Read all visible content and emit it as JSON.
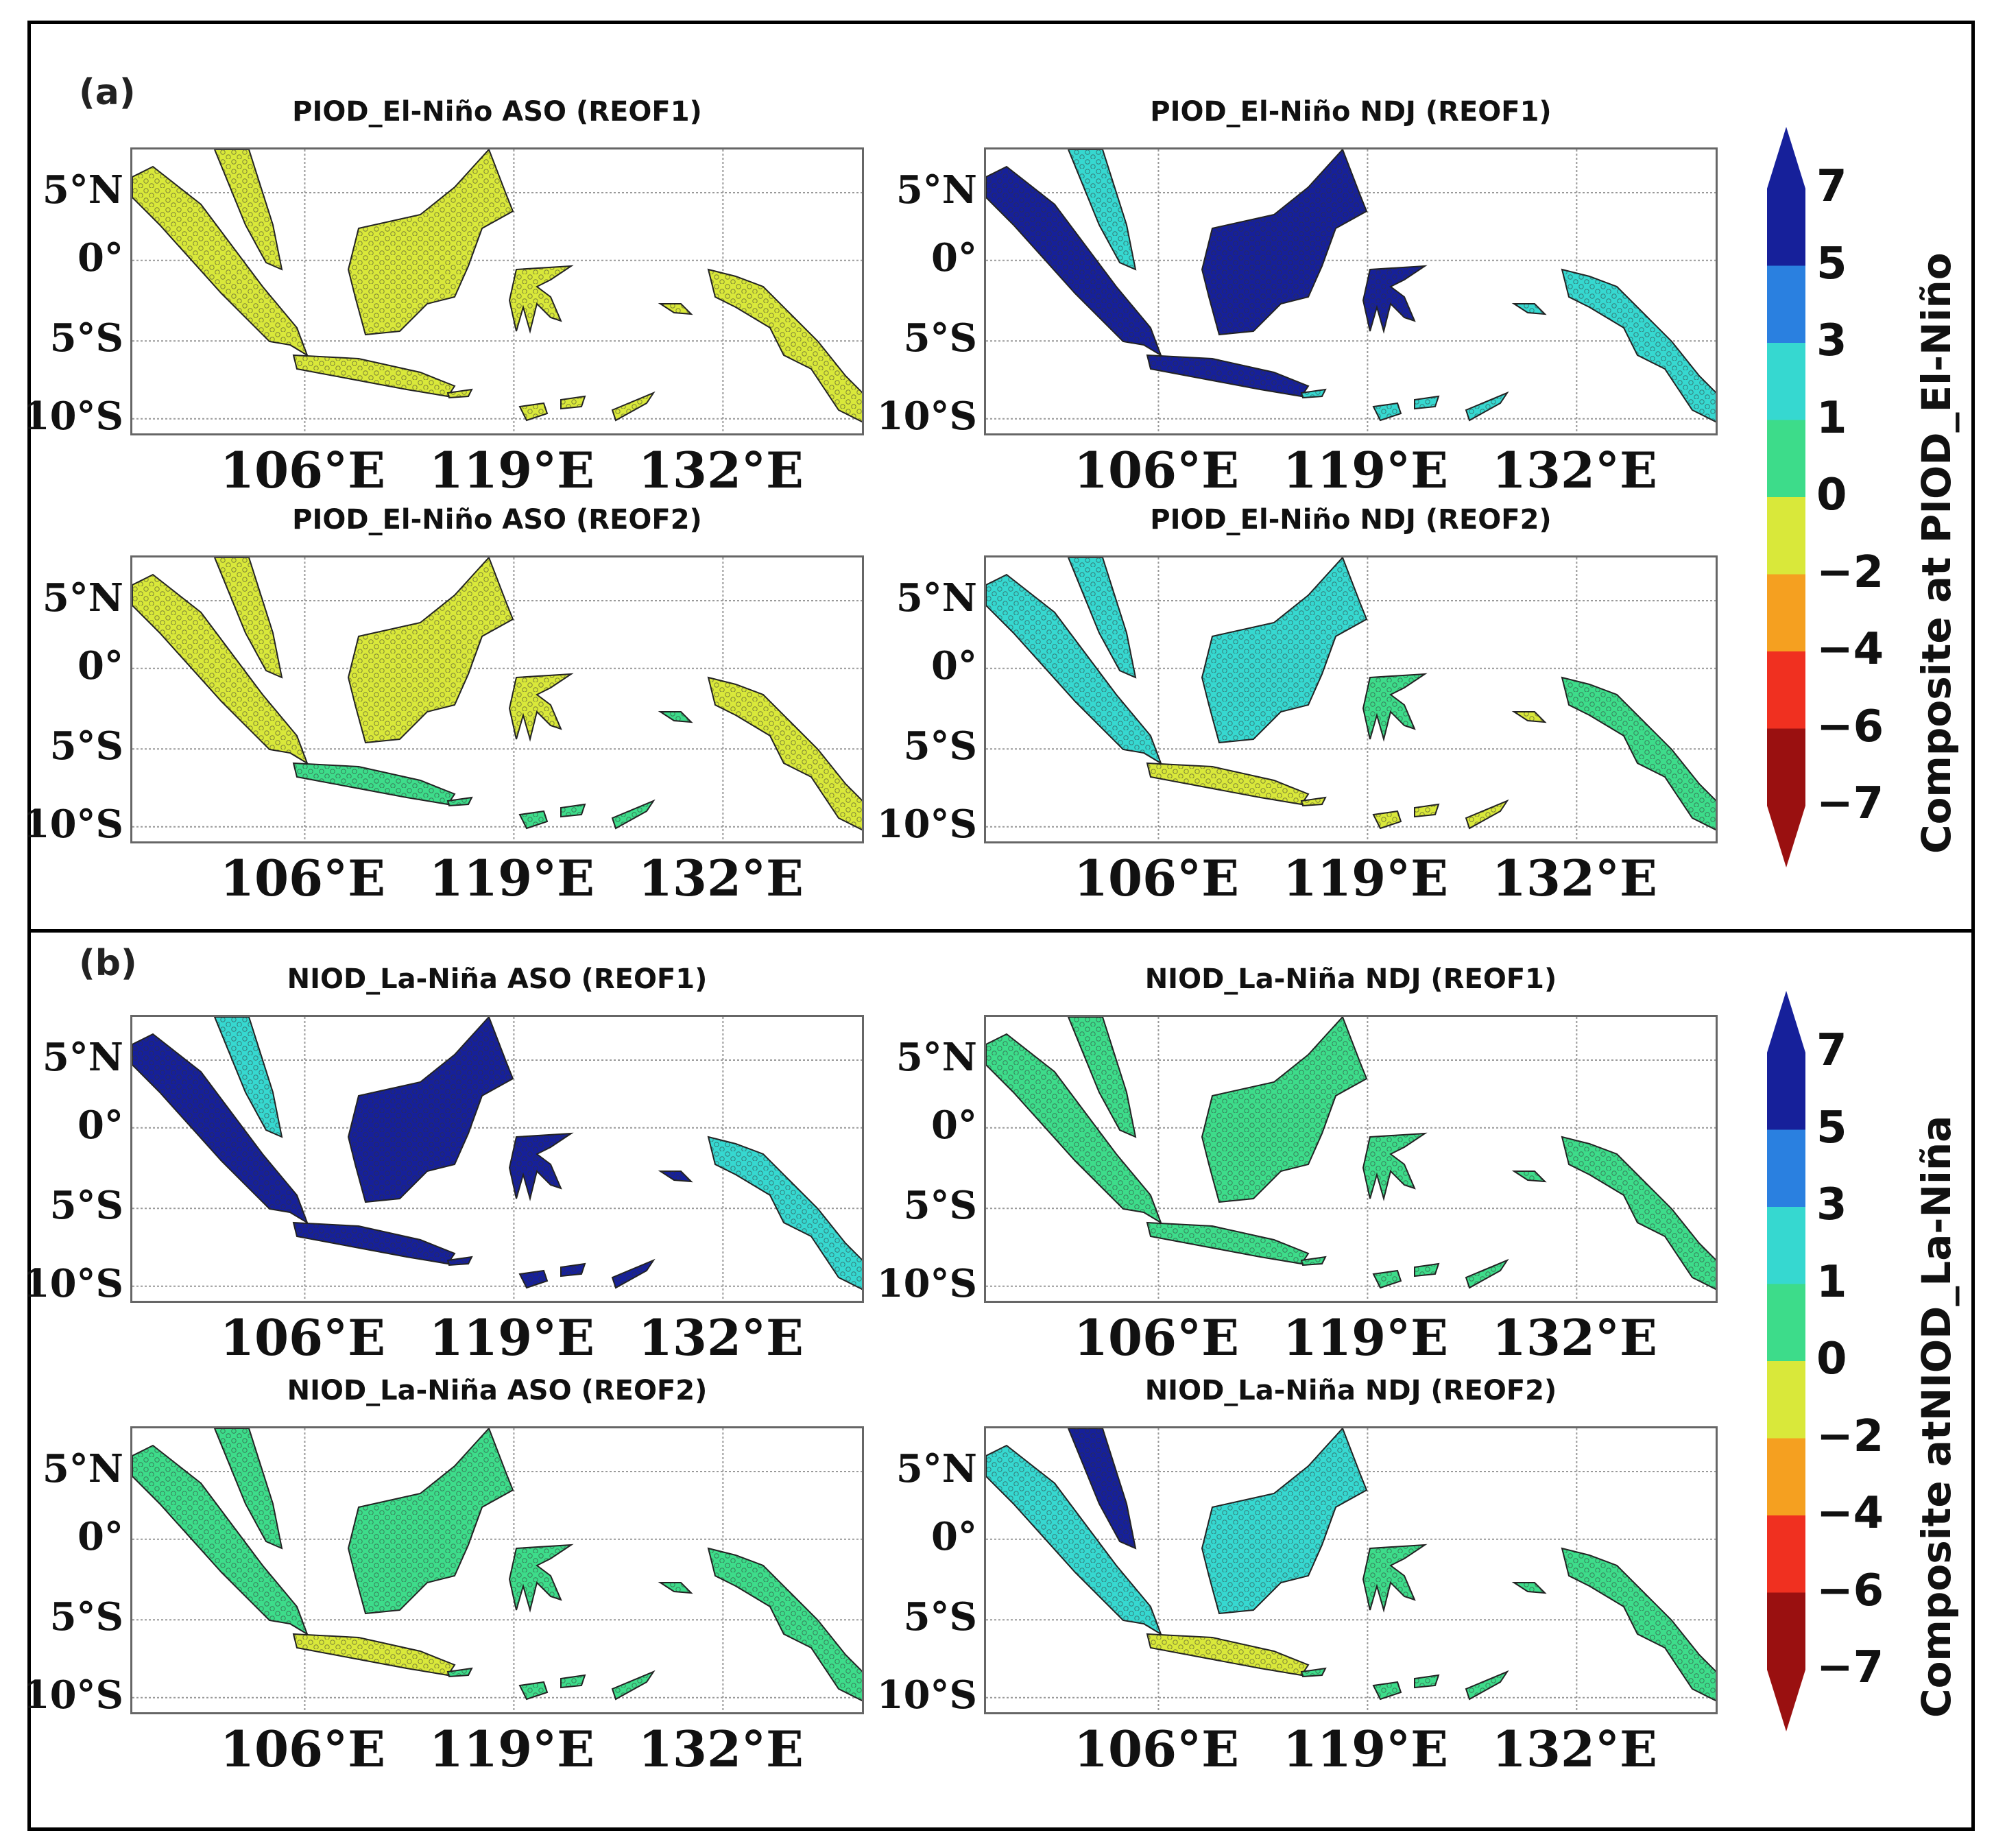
{
  "sections": [
    {
      "label": "(a)",
      "colorbar_title": "Composite at PIOD_El-Niño",
      "panels": [
        {
          "title": "PIOD_El-Niño ASO (REOF1)",
          "fills": {
            "sumatra": "#d9e83a",
            "malaya": "#d9e83a",
            "borneo": "#d9e83a",
            "java": "#d9e83a",
            "sulawesi": "#d9e83a",
            "papua": "#d9e83a",
            "islands": "#d9e83a"
          }
        },
        {
          "title": "PIOD_El-Niño NDJ (REOF1)",
          "fills": {
            "sumatra": "#16209a",
            "malaya": "#36d8d0",
            "borneo": "#16209a",
            "java": "#16209a",
            "sulawesi": "#16209a",
            "papua": "#36d8d0",
            "islands": "#36d8d0"
          }
        },
        {
          "title": "PIOD_El-Niño ASO (REOF2)",
          "fills": {
            "sumatra": "#d9e83a",
            "malaya": "#d9e83a",
            "borneo": "#d9e83a",
            "java": "#3ddc8a",
            "sulawesi": "#d9e83a",
            "papua": "#d9e83a",
            "islands": "#3ddc8a"
          }
        },
        {
          "title": "PIOD_El-Niño NDJ (REOF2)",
          "fills": {
            "sumatra": "#36d8d0",
            "malaya": "#36d8d0",
            "borneo": "#36d8d0",
            "java": "#d9e83a",
            "sulawesi": "#3ddc8a",
            "papua": "#3ddc8a",
            "islands": "#d9e83a"
          }
        }
      ]
    },
    {
      "label": "(b)",
      "colorbar_title": "Composite atNIOD_La-Niña",
      "panels": [
        {
          "title": "NIOD_La-Niña ASO (REOF1)",
          "fills": {
            "sumatra": "#16209a",
            "malaya": "#36d8d0",
            "borneo": "#16209a",
            "java": "#16209a",
            "sulawesi": "#16209a",
            "papua": "#36d8d0",
            "islands": "#16209a"
          }
        },
        {
          "title": "NIOD_La-Niña NDJ (REOF1)",
          "fills": {
            "sumatra": "#3ddc8a",
            "malaya": "#3ddc8a",
            "borneo": "#3ddc8a",
            "java": "#3ddc8a",
            "sulawesi": "#3ddc8a",
            "papua": "#3ddc8a",
            "islands": "#3ddc8a"
          }
        },
        {
          "title": "NIOD_La-Niña ASO (REOF2)",
          "fills": {
            "sumatra": "#3ddc8a",
            "malaya": "#3ddc8a",
            "borneo": "#3ddc8a",
            "java": "#d9e83a",
            "sulawesi": "#3ddc8a",
            "papua": "#3ddc8a",
            "islands": "#3ddc8a"
          }
        },
        {
          "title": "NIOD_La-Niña NDJ (REOF2)",
          "fills": {
            "sumatra": "#36d8d0",
            "malaya": "#16209a",
            "borneo": "#36d8d0",
            "java": "#d9e83a",
            "sulawesi": "#3ddc8a",
            "papua": "#3ddc8a",
            "islands": "#3ddc8a"
          }
        }
      ]
    }
  ],
  "lat_ticks": [
    "5°N",
    "0°",
    "5°S",
    "10°S"
  ],
  "lon_ticks": [
    "106°E",
    "119°E",
    "132°E"
  ],
  "colorbar": {
    "tick_labels": [
      "7",
      "5",
      "3",
      "1",
      "0",
      "−2",
      "−4",
      "−6",
      "−7"
    ],
    "colors": [
      "#16209a",
      "#2a80e0",
      "#36d8d0",
      "#3ddc8a",
      "#d9e83a",
      "#f5a020",
      "#f03020",
      "#9a1010"
    ]
  }
}
